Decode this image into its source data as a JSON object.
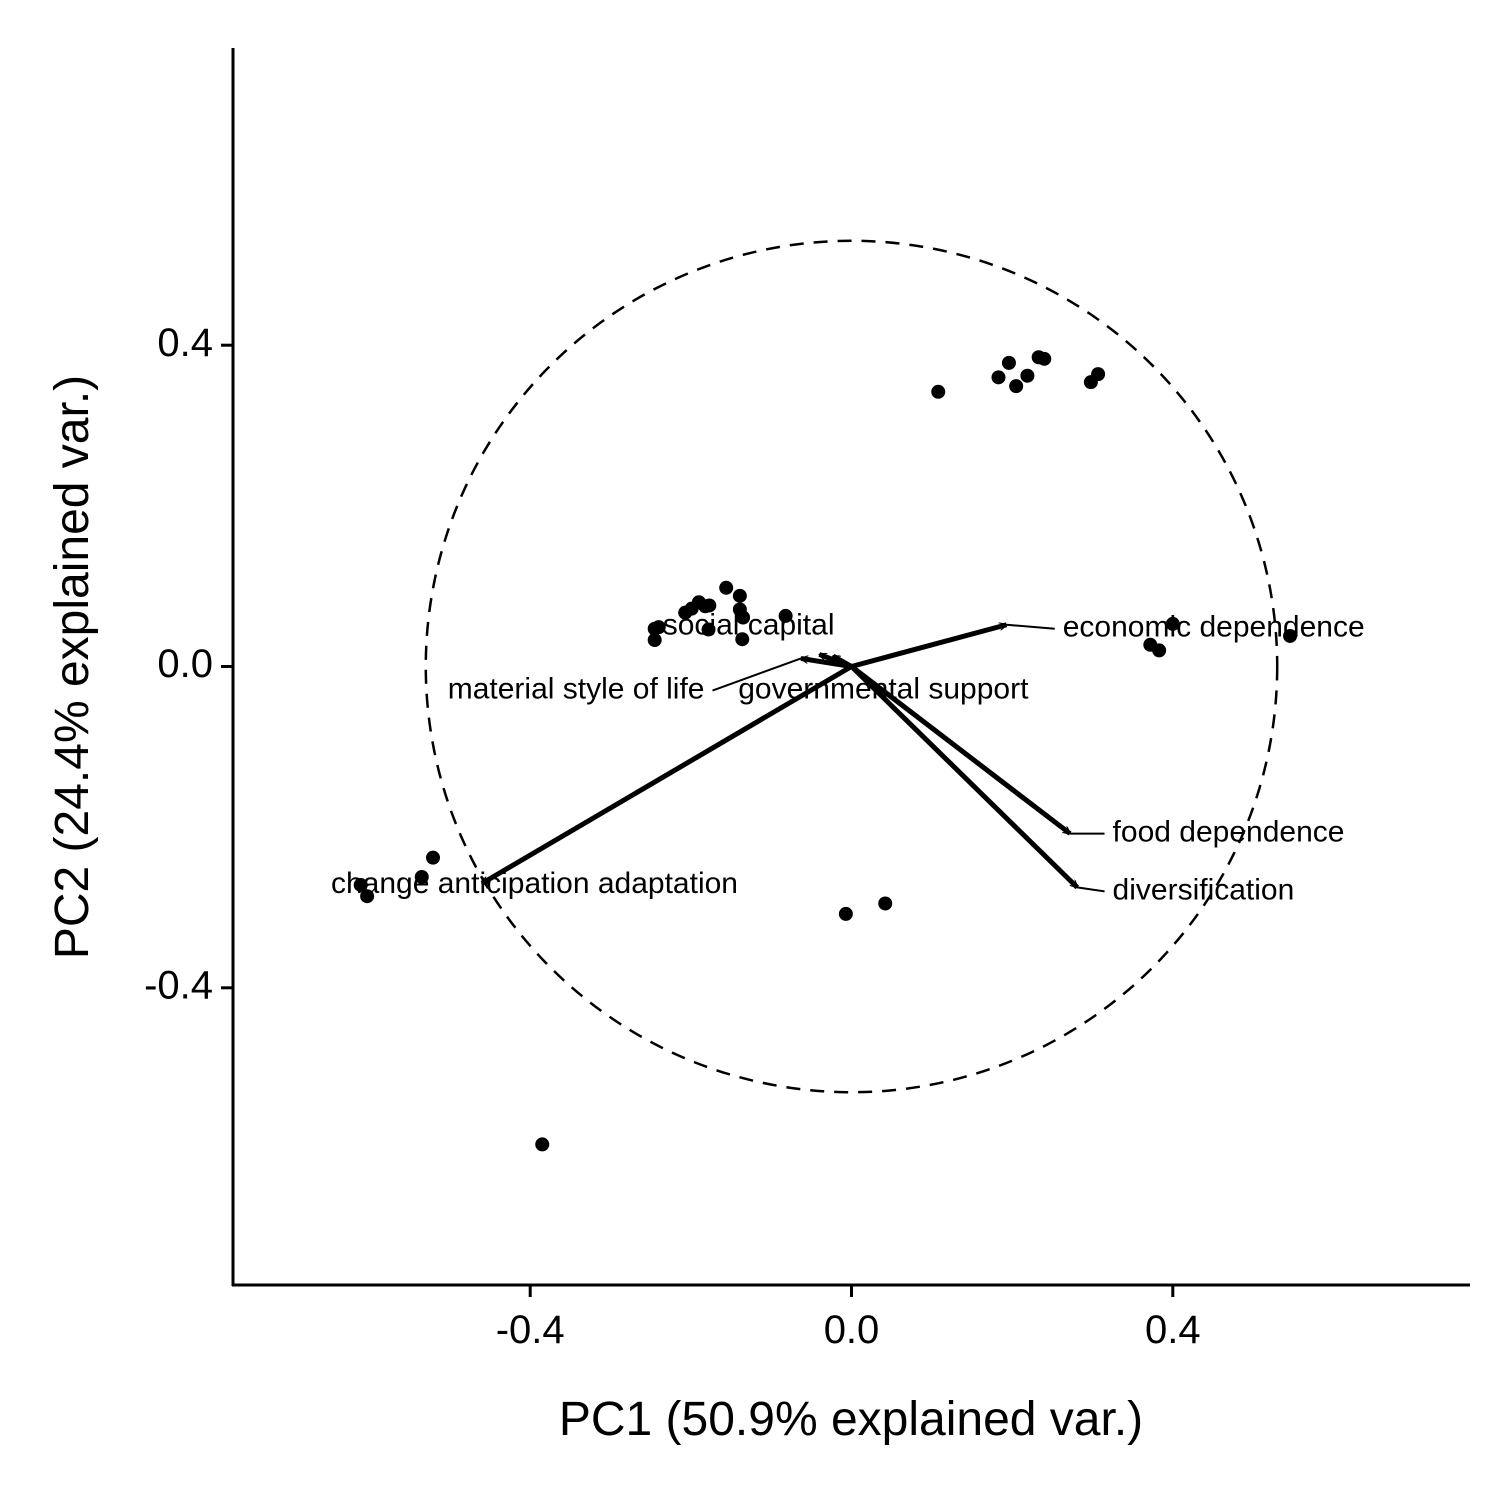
{
  "chart_data": {
    "type": "scatter",
    "subtype": "pca-biplot",
    "xlabel": "PC1 (50.9% explained var.)",
    "ylabel": "PC2 (24.4% explained var.)",
    "xlim": [
      -0.77,
      0.77
    ],
    "ylim": [
      -0.77,
      0.77
    ],
    "x_ticks": [
      {
        "value": -0.4,
        "label": "-0.4"
      },
      {
        "value": 0.0,
        "label": "0.0"
      },
      {
        "value": 0.4,
        "label": "0.4"
      }
    ],
    "y_ticks": [
      {
        "value": -0.4,
        "label": "-0.4"
      },
      {
        "value": 0.0,
        "label": "0.0"
      },
      {
        "value": 0.4,
        "label": "0.4"
      }
    ],
    "grid": false,
    "legend": "none",
    "correlation_circle_radius": 0.53,
    "points": [
      {
        "x": 0.108,
        "y": 0.342
      },
      {
        "x": 0.183,
        "y": 0.36
      },
      {
        "x": 0.196,
        "y": 0.378
      },
      {
        "x": 0.205,
        "y": 0.349
      },
      {
        "x": 0.219,
        "y": 0.362
      },
      {
        "x": 0.233,
        "y": 0.385
      },
      {
        "x": 0.24,
        "y": 0.383
      },
      {
        "x": 0.298,
        "y": 0.354
      },
      {
        "x": 0.307,
        "y": 0.364
      },
      {
        "x": 0.372,
        "y": 0.027
      },
      {
        "x": 0.383,
        "y": 0.02
      },
      {
        "x": 0.4,
        "y": 0.053
      },
      {
        "x": 0.546,
        "y": 0.038
      },
      {
        "x": -0.245,
        "y": 0.047
      },
      {
        "x": -0.24,
        "y": 0.049
      },
      {
        "x": -0.245,
        "y": 0.033
      },
      {
        "x": -0.207,
        "y": 0.067
      },
      {
        "x": -0.199,
        "y": 0.072
      },
      {
        "x": -0.19,
        "y": 0.08
      },
      {
        "x": -0.182,
        "y": 0.075
      },
      {
        "x": -0.177,
        "y": 0.076
      },
      {
        "x": -0.178,
        "y": 0.046
      },
      {
        "x": -0.156,
        "y": 0.098
      },
      {
        "x": -0.139,
        "y": 0.088
      },
      {
        "x": -0.139,
        "y": 0.071
      },
      {
        "x": -0.136,
        "y": 0.034
      },
      {
        "x": -0.135,
        "y": 0.061
      },
      {
        "x": -0.082,
        "y": 0.063
      },
      {
        "x": -0.521,
        "y": -0.238
      },
      {
        "x": -0.535,
        "y": -0.262
      },
      {
        "x": -0.611,
        "y": -0.272
      },
      {
        "x": -0.603,
        "y": -0.286
      },
      {
        "x": -0.385,
        "y": -0.595
      },
      {
        "x": -0.007,
        "y": -0.308
      },
      {
        "x": 0.042,
        "y": -0.295
      }
    ],
    "loadings": [
      {
        "name": "social capital",
        "x": -0.04,
        "y": 0.015,
        "label_x": -0.235,
        "label_y": 0.05,
        "label_anchor": "start",
        "leader": false
      },
      {
        "name": "material style of life",
        "x": -0.063,
        "y": 0.01,
        "label_x": -0.183,
        "label_y": -0.03,
        "label_anchor": "end",
        "leader": true
      },
      {
        "name": "governmental support",
        "x": -0.023,
        "y": 0.013,
        "label_x": -0.141,
        "label_y": -0.03,
        "label_anchor": "start",
        "leader": false
      },
      {
        "name": "economic dependence",
        "x": 0.193,
        "y": 0.052,
        "label_x": 0.263,
        "label_y": 0.047,
        "label_anchor": "start",
        "leader": true
      },
      {
        "name": "food dependence",
        "x": 0.272,
        "y": -0.208,
        "label_x": 0.325,
        "label_y": -0.208,
        "label_anchor": "start",
        "leader": true
      },
      {
        "name": "diversification",
        "x": 0.281,
        "y": -0.275,
        "label_x": 0.325,
        "label_y": -0.28,
        "label_anchor": "start",
        "leader": true
      },
      {
        "name": "change anticipation adaptation",
        "x": -0.46,
        "y": -0.27,
        "label_x": -0.648,
        "label_y": -0.272,
        "label_anchor": "start",
        "leader": false
      }
    ]
  }
}
